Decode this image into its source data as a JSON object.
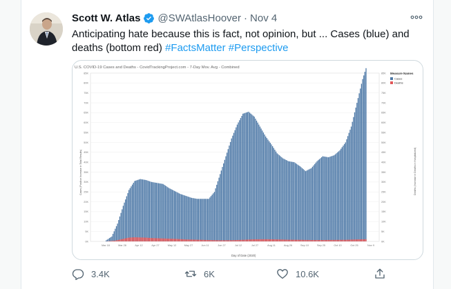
{
  "tweet": {
    "author_name": "Scott W. Atlas",
    "handle": "@SWAtlasHoover",
    "separator": "·",
    "date": "Nov 4",
    "text_plain": "Anticipating hate because this is fact, not opinion, but ... Cases (blue)  and deaths (bottom red) ",
    "hashtags": [
      "#FactsMatter",
      "#Perspective"
    ],
    "reply_count": "3.4K",
    "retweet_count": "6K",
    "like_count": "10.6K"
  },
  "colors": {
    "accent": "#1d9bf0",
    "cases": "#4e79a7",
    "deaths": "#e15759"
  },
  "icons": [
    "verified-badge-icon",
    "more-icon",
    "reply-icon",
    "retweet-icon",
    "like-icon",
    "share-icon"
  ],
  "chart_data": {
    "type": "bar",
    "title": "U.S. COVID-19 Cases and Deaths - CovidTrackingProject.com - 7-Day Mov. Avg - Combined",
    "xlabel": "Day of Date (2020)",
    "ylabel": "Cases (Positive Increase in Total Results)",
    "y2label": "Deaths (Increase in Deaths in Hospitalized)",
    "legend_title": "Measure Names",
    "legend": [
      "Cases",
      "Deaths"
    ],
    "legend_position": "right",
    "x_ticks": [
      "Mar 18",
      "Mar 28",
      "Apr 12",
      "Apr 27",
      "May 12",
      "May 27",
      "Jun 11",
      "Jun 27",
      "Jul 12",
      "Jul 27",
      "Aug 11",
      "Aug 26",
      "Sep 10",
      "Sep 25",
      "Oct 10",
      "Oct 25",
      "Nov 9"
    ],
    "y_ticks": [
      "0K",
      "5K",
      "10K",
      "15K",
      "20K",
      "25K",
      "30K",
      "35K",
      "40K",
      "45K",
      "50K",
      "55K",
      "60K",
      "65K",
      "70K",
      "75K",
      "80K",
      "85K"
    ],
    "y2_ticks": [
      "0K",
      "5K",
      "10K",
      "15K",
      "20K",
      "25K",
      "30K",
      "35K",
      "40K",
      "45K",
      "50K",
      "55K",
      "60K",
      "65K",
      "70K",
      "75K",
      "80K",
      "85K"
    ],
    "ylim": [
      0,
      85000
    ],
    "series": [
      {
        "name": "Cases",
        "anchor_days": [
          0,
          5,
          10,
          15,
          20,
          25,
          30,
          35,
          40,
          45,
          50,
          55,
          60,
          65,
          70,
          75,
          80,
          85,
          90,
          95,
          100,
          105,
          110,
          115,
          120,
          125,
          130,
          135,
          140,
          145,
          150,
          155,
          160,
          165,
          170,
          175,
          180,
          185,
          190,
          195,
          200,
          205,
          210,
          215,
          220,
          225,
          228
        ],
        "values": [
          500,
          2500,
          9000,
          18000,
          26000,
          30500,
          31500,
          31000,
          30000,
          29500,
          29000,
          27000,
          25500,
          24000,
          23000,
          22000,
          21500,
          21500,
          21500,
          25000,
          34000,
          43000,
          52000,
          59000,
          64500,
          65500,
          63000,
          58000,
          53000,
          49000,
          44500,
          42000,
          40500,
          40000,
          38000,
          35500,
          37000,
          40500,
          43000,
          42500,
          43500,
          46000,
          50000,
          58000,
          70000,
          82000,
          87500
        ]
      },
      {
        "name": "Deaths",
        "anchor_days": [
          0,
          8,
          15,
          20,
          25,
          30,
          35,
          40,
          50,
          60,
          70,
          80,
          90,
          100,
          110,
          120,
          130,
          140,
          150,
          160,
          170,
          180,
          190,
          200,
          210,
          220,
          228
        ],
        "values": [
          20,
          400,
          1300,
          1900,
          2100,
          2000,
          1900,
          1700,
          1500,
          1300,
          1000,
          850,
          700,
          550,
          600,
          800,
          1050,
          1100,
          1000,
          850,
          800,
          700,
          700,
          750,
          800,
          1000,
          1100
        ]
      }
    ]
  }
}
